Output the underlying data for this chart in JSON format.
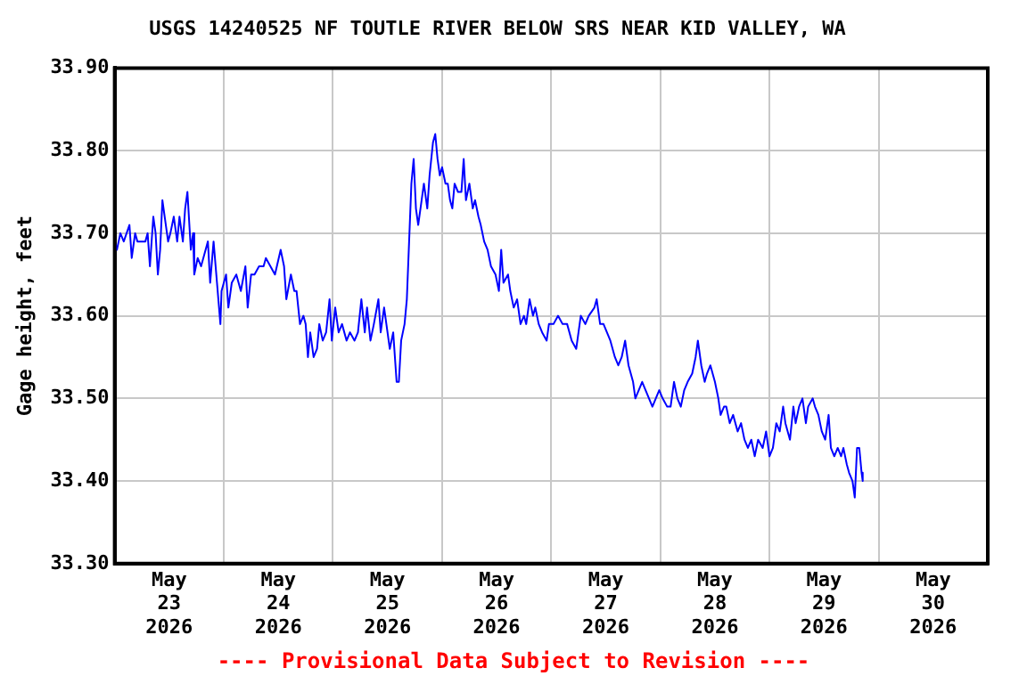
{
  "chart_data": {
    "type": "line",
    "title": "USGS 14240525 NF TOUTLE RIVER BELOW SRS NEAR KID VALLEY, WA",
    "ylabel": "Gage height, feet",
    "annotations": [
      "---- Provisional Data Subject to Revision ----"
    ],
    "x": [
      "2026-05-23T00:00",
      "2026-05-23T00:30",
      "2026-05-23T01:15",
      "2026-05-23T02:00",
      "2026-05-23T03:15",
      "2026-05-23T03:45",
      "2026-05-23T04:30",
      "2026-05-23T05:00",
      "2026-05-23T05:45",
      "2026-05-23T06:45",
      "2026-05-23T07:15",
      "2026-05-23T07:45",
      "2026-05-23T08:30",
      "2026-05-23T09:00",
      "2026-05-23T09:30",
      "2026-05-23T10:00",
      "2026-05-23T10:30",
      "2026-05-23T11:00",
      "2026-05-23T11:45",
      "2026-05-23T12:15",
      "2026-05-23T13:00",
      "2026-05-23T13:45",
      "2026-05-23T14:15",
      "2026-05-23T15:00",
      "2026-05-23T15:30",
      "2026-05-23T16:00",
      "2026-05-23T16:45",
      "2026-05-23T17:15",
      "2026-05-23T17:30",
      "2026-05-23T18:15",
      "2026-05-23T19:00",
      "2026-05-23T19:30",
      "2026-05-23T20:30",
      "2026-05-23T21:00",
      "2026-05-23T21:45",
      "2026-05-23T22:30",
      "2026-05-23T23:15",
      "2026-05-23T23:30",
      "2026-05-24T00:30",
      "2026-05-24T01:00",
      "2026-05-24T01:45",
      "2026-05-24T02:45",
      "2026-05-24T03:45",
      "2026-05-24T04:45",
      "2026-05-24T05:15",
      "2026-05-24T06:00",
      "2026-05-24T06:45",
      "2026-05-24T07:45",
      "2026-05-24T08:45",
      "2026-05-24T09:15",
      "2026-05-24T10:15",
      "2026-05-24T11:15",
      "2026-05-24T12:30",
      "2026-05-24T13:15",
      "2026-05-24T13:45",
      "2026-05-24T14:45",
      "2026-05-24T15:30",
      "2026-05-24T16:00",
      "2026-05-24T16:45",
      "2026-05-24T17:30",
      "2026-05-24T18:00",
      "2026-05-24T18:30",
      "2026-05-24T19:00",
      "2026-05-24T19:45",
      "2026-05-24T20:30",
      "2026-05-24T21:00",
      "2026-05-24T21:45",
      "2026-05-24T22:30",
      "2026-05-24T23:15",
      "2026-05-24T23:45",
      "2026-05-25T00:30",
      "2026-05-25T01:15",
      "2026-05-25T02:00",
      "2026-05-25T03:00",
      "2026-05-25T03:45",
      "2026-05-25T04:45",
      "2026-05-25T05:30",
      "2026-05-25T06:15",
      "2026-05-25T07:00",
      "2026-05-25T07:30",
      "2026-05-25T08:15",
      "2026-05-25T09:00",
      "2026-05-25T10:00",
      "2026-05-25T10:30",
      "2026-05-25T11:15",
      "2026-05-25T11:45",
      "2026-05-25T12:30",
      "2026-05-25T13:15",
      "2026-05-25T14:00",
      "2026-05-25T14:30",
      "2026-05-25T15:00",
      "2026-05-25T15:45",
      "2026-05-25T16:15",
      "2026-05-25T16:45",
      "2026-05-25T17:15",
      "2026-05-25T17:45",
      "2026-05-25T18:15",
      "2026-05-25T18:45",
      "2026-05-25T19:30",
      "2026-05-25T20:00",
      "2026-05-25T20:45",
      "2026-05-25T21:15",
      "2026-05-25T22:00",
      "2026-05-25T22:30",
      "2026-05-25T23:00",
      "2026-05-25T23:30",
      "2026-05-26T00:00",
      "2026-05-26T00:45",
      "2026-05-26T01:15",
      "2026-05-26T01:45",
      "2026-05-26T02:15",
      "2026-05-26T02:45",
      "2026-05-26T03:30",
      "2026-05-26T04:15",
      "2026-05-26T04:45",
      "2026-05-26T05:15",
      "2026-05-26T06:00",
      "2026-05-26T06:45",
      "2026-05-26T07:15",
      "2026-05-26T08:00",
      "2026-05-26T08:30",
      "2026-05-26T09:15",
      "2026-05-26T10:00",
      "2026-05-26T10:45",
      "2026-05-26T11:45",
      "2026-05-26T12:30",
      "2026-05-26T13:00",
      "2026-05-26T13:30",
      "2026-05-26T14:30",
      "2026-05-26T15:00",
      "2026-05-26T15:45",
      "2026-05-26T16:30",
      "2026-05-26T17:15",
      "2026-05-26T18:00",
      "2026-05-26T18:30",
      "2026-05-26T19:15",
      "2026-05-26T20:00",
      "2026-05-26T20:30",
      "2026-05-26T21:15",
      "2026-05-26T22:00",
      "2026-05-26T23:00",
      "2026-05-26T23:30",
      "2026-05-27T00:15",
      "2026-05-27T00:30",
      "2026-05-27T01:30",
      "2026-05-27T02:30",
      "2026-05-27T03:30",
      "2026-05-27T04:30",
      "2026-05-27T05:30",
      "2026-05-27T06:30",
      "2026-05-27T07:30",
      "2026-05-27T08:15",
      "2026-05-27T09:30",
      "2026-05-27T10:00",
      "2026-05-27T10:45",
      "2026-05-27T11:30",
      "2026-05-27T12:15",
      "2026-05-27T13:00",
      "2026-05-27T14:00",
      "2026-05-27T14:45",
      "2026-05-27T15:30",
      "2026-05-27T16:15",
      "2026-05-27T17:00",
      "2026-05-27T18:00",
      "2026-05-27T18:30",
      "2026-05-27T19:15",
      "2026-05-27T20:00",
      "2026-05-27T20:45",
      "2026-05-27T21:30",
      "2026-05-27T22:15",
      "2026-05-27T23:00",
      "2026-05-27T23:45",
      "2026-05-28T00:30",
      "2026-05-28T01:30",
      "2026-05-28T02:15",
      "2026-05-28T03:00",
      "2026-05-28T03:45",
      "2026-05-28T04:30",
      "2026-05-28T05:15",
      "2026-05-28T06:00",
      "2026-05-28T07:00",
      "2026-05-28T07:45",
      "2026-05-28T08:15",
      "2026-05-28T09:00",
      "2026-05-28T09:45",
      "2026-05-28T10:15",
      "2026-05-28T11:00",
      "2026-05-28T12:00",
      "2026-05-28T12:45",
      "2026-05-28T13:15",
      "2026-05-28T14:00",
      "2026-05-28T14:30",
      "2026-05-28T15:15",
      "2026-05-28T16:00",
      "2026-05-28T17:00",
      "2026-05-28T17:45",
      "2026-05-28T18:30",
      "2026-05-28T19:15",
      "2026-05-28T20:00",
      "2026-05-28T20:45",
      "2026-05-28T21:30",
      "2026-05-28T22:30",
      "2026-05-28T23:15",
      "2026-05-29T00:00",
      "2026-05-29T00:45",
      "2026-05-29T01:30",
      "2026-05-29T02:15",
      "2026-05-29T03:00",
      "2026-05-29T03:30",
      "2026-05-29T04:30",
      "2026-05-29T05:15",
      "2026-05-29T05:45",
      "2026-05-29T06:30",
      "2026-05-29T07:15",
      "2026-05-29T08:00",
      "2026-05-29T08:30",
      "2026-05-29T09:30",
      "2026-05-29T10:00",
      "2026-05-29T10:45",
      "2026-05-29T11:30",
      "2026-05-29T12:15",
      "2026-05-29T13:00",
      "2026-05-29T13:30",
      "2026-05-29T14:15",
      "2026-05-29T15:00",
      "2026-05-29T15:45",
      "2026-05-29T16:15",
      "2026-05-29T17:00",
      "2026-05-29T17:30",
      "2026-05-29T18:15",
      "2026-05-29T18:45",
      "2026-05-29T19:15",
      "2026-05-29T19:45",
      "2026-05-29T20:15",
      "2026-05-29T20:30"
    ],
    "series": [
      {
        "color": "#0000ff",
        "values": [
          33.69,
          33.68,
          33.7,
          33.69,
          33.71,
          33.67,
          33.7,
          33.69,
          33.69,
          33.69,
          33.7,
          33.66,
          33.72,
          33.7,
          33.65,
          33.68,
          33.74,
          33.72,
          33.69,
          33.7,
          33.72,
          33.69,
          33.72,
          33.69,
          33.73,
          33.75,
          33.68,
          33.7,
          33.65,
          33.67,
          33.66,
          33.67,
          33.69,
          33.64,
          33.69,
          33.64,
          33.59,
          33.63,
          33.65,
          33.61,
          33.64,
          33.65,
          33.63,
          33.66,
          33.61,
          33.65,
          33.65,
          33.66,
          33.66,
          33.67,
          33.66,
          33.65,
          33.68,
          33.66,
          33.62,
          33.65,
          33.63,
          33.63,
          33.59,
          33.6,
          33.59,
          33.55,
          33.58,
          33.55,
          33.56,
          33.59,
          33.57,
          33.58,
          33.62,
          33.57,
          33.61,
          33.58,
          33.59,
          33.57,
          33.58,
          33.57,
          33.58,
          33.62,
          33.58,
          33.61,
          33.57,
          33.59,
          33.62,
          33.58,
          33.61,
          33.59,
          33.56,
          33.58,
          33.52,
          33.52,
          33.57,
          33.59,
          33.62,
          33.69,
          33.76,
          33.79,
          33.73,
          33.71,
          33.74,
          33.76,
          33.73,
          33.77,
          33.81,
          33.82,
          33.79,
          33.77,
          33.78,
          33.76,
          33.76,
          33.74,
          33.73,
          33.76,
          33.75,
          33.75,
          33.79,
          33.74,
          33.76,
          33.73,
          33.74,
          33.72,
          33.71,
          33.69,
          33.68,
          33.66,
          33.65,
          33.63,
          33.68,
          33.64,
          33.65,
          33.63,
          33.61,
          33.62,
          33.59,
          33.6,
          33.59,
          33.62,
          33.6,
          33.61,
          33.59,
          33.58,
          33.57,
          33.59,
          33.59,
          33.59,
          33.6,
          33.59,
          33.59,
          33.57,
          33.56,
          33.6,
          33.59,
          33.6,
          33.61,
          33.62,
          33.59,
          33.59,
          33.58,
          33.57,
          33.55,
          33.54,
          33.55,
          33.57,
          33.54,
          33.52,
          33.5,
          33.51,
          33.52,
          33.51,
          33.5,
          33.49,
          33.5,
          33.51,
          33.5,
          33.49,
          33.49,
          33.52,
          33.5,
          33.49,
          33.51,
          33.52,
          33.53,
          33.55,
          33.57,
          33.54,
          33.52,
          33.53,
          33.54,
          33.52,
          33.5,
          33.48,
          33.49,
          33.49,
          33.47,
          33.48,
          33.46,
          33.47,
          33.45,
          33.44,
          33.45,
          33.43,
          33.45,
          33.44,
          33.46,
          33.43,
          33.44,
          33.47,
          33.46,
          33.49,
          33.47,
          33.45,
          33.49,
          33.47,
          33.49,
          33.5,
          33.47,
          33.49,
          33.5,
          33.49,
          33.48,
          33.46,
          33.45,
          33.48,
          33.44,
          33.43,
          33.44,
          33.43,
          33.44,
          33.42,
          33.41,
          33.4,
          33.38,
          33.44,
          33.44,
          33.41,
          33.4
        ]
      }
    ],
    "xlim": [
      "2026-05-23",
      "2026-05-31"
    ],
    "xticks": [
      {
        "value": "2026-05-24",
        "label": null
      },
      {
        "value": "2026-05-25",
        "label": null
      },
      {
        "value": "2026-05-26",
        "label": null
      },
      {
        "value": "2026-05-27",
        "label": null
      },
      {
        "value": "2026-05-28",
        "label": null
      },
      {
        "value": "2026-05-29",
        "label": null
      },
      {
        "value": "2026-05-30",
        "label": null
      },
      {
        "value": "2026-05-23T12:00",
        "label": "May\n23\n2026"
      },
      {
        "value": "2026-05-24T12:00",
        "label": "May\n24\n2026"
      },
      {
        "value": "2026-05-25T12:00",
        "label": "May\n25\n2026"
      },
      {
        "value": "2026-05-26T12:00",
        "label": "May\n26\n2026"
      },
      {
        "value": "2026-05-27T12:00",
        "label": "May\n27\n2026"
      },
      {
        "value": "2026-05-28T12:00",
        "label": "May\n28\n2026"
      },
      {
        "value": "2026-05-29T12:00",
        "label": "May\n29\n2026"
      },
      {
        "value": "2026-05-30T12:00",
        "label": "May\n30\n2026"
      }
    ],
    "ylim": [
      33.3,
      33.9
    ],
    "yticks": [
      {
        "value": 33.3,
        "label": "33.30"
      },
      {
        "value": 33.4,
        "label": "33.40"
      },
      {
        "value": 33.5,
        "label": "33.50"
      },
      {
        "value": 33.6,
        "label": "33.60"
      },
      {
        "value": 33.7,
        "label": "33.70"
      },
      {
        "value": 33.8,
        "label": "33.80"
      },
      {
        "value": 33.9,
        "label": "33.90"
      }
    ],
    "grid": true,
    "legend": false,
    "marker": "none",
    "line_style": "solid"
  }
}
